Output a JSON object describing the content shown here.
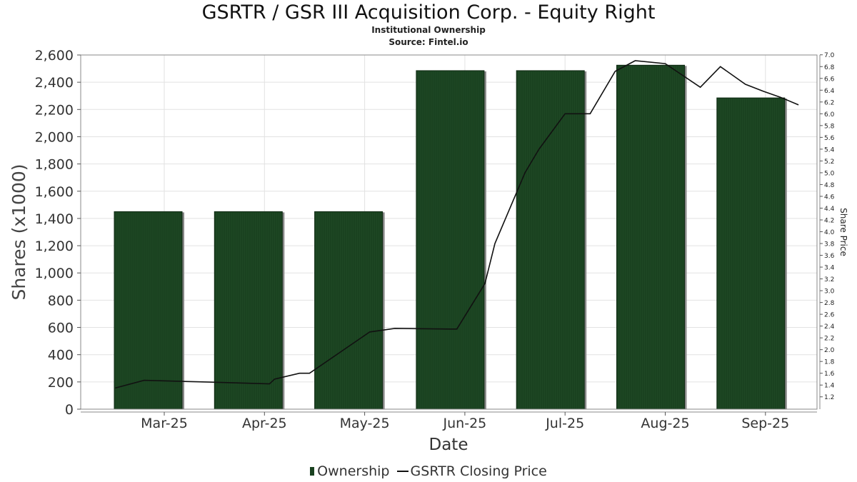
{
  "title": "GSRTR / GSR III Acquisition Corp. - Equity Right",
  "subtitle": "Institutional Ownership",
  "source": "Source: Fintel.io",
  "chart_data": {
    "type": "bar",
    "categories": [
      "Mar-25",
      "Apr-25",
      "May-25",
      "Jun-25",
      "Jul-25",
      "Aug-25",
      "Sep-25"
    ],
    "xlabel": "Date",
    "ylabel": "Shares (x1000)",
    "ylabel_right": "Share Price",
    "ylim": [
      0,
      2600
    ],
    "yticks": [
      "0",
      "200",
      "400",
      "600",
      "800",
      "1,000",
      "1,200",
      "1,400",
      "1,600",
      "1,800",
      "2,000",
      "2,200",
      "2,400",
      "2,600"
    ],
    "ylim_right": [
      1.1,
      7.1
    ],
    "yticks_right": [
      "1.2",
      "1.4",
      "1.6",
      "1.8",
      "2.0",
      "2.2",
      "2.4",
      "2.6",
      "2.8",
      "3.0",
      "3.2",
      "3.4",
      "3.6",
      "3.8",
      "4.0",
      "4.2",
      "4.4",
      "4.6",
      "4.8",
      "5.0",
      "5.2",
      "5.4",
      "5.6",
      "5.8",
      "6.0",
      "6.2",
      "6.4",
      "6.6",
      "6.8",
      "7.0"
    ],
    "grid": true,
    "legend_position": "bottom",
    "series": [
      {
        "name": "Ownership",
        "kind": "bar",
        "color": "#1a4220",
        "values": [
          1450,
          1450,
          1450,
          2485,
          2485,
          2525,
          2285
        ]
      },
      {
        "name": "GSRTR Closing Price",
        "kind": "line",
        "color": "#111111",
        "x": [
          -0.49,
          -0.2,
          0.45,
          1.05,
          1.1,
          1.35,
          1.45,
          2.05,
          2.3,
          2.85,
          2.92,
          3.2,
          3.3,
          3.6,
          3.74,
          4.0,
          4.25,
          4.5,
          4.7,
          5.0,
          5.35,
          5.55,
          5.8,
          5.98,
          6.15,
          6.33
        ],
        "values": [
          1.35,
          1.48,
          1.45,
          1.42,
          1.5,
          1.6,
          1.6,
          2.3,
          2.36,
          2.35,
          2.35,
          3.12,
          3.8,
          5.0,
          5.4,
          6.0,
          6.0,
          6.72,
          6.9,
          6.85,
          6.45,
          6.8,
          6.5,
          6.38,
          6.28,
          6.15
        ]
      }
    ]
  }
}
